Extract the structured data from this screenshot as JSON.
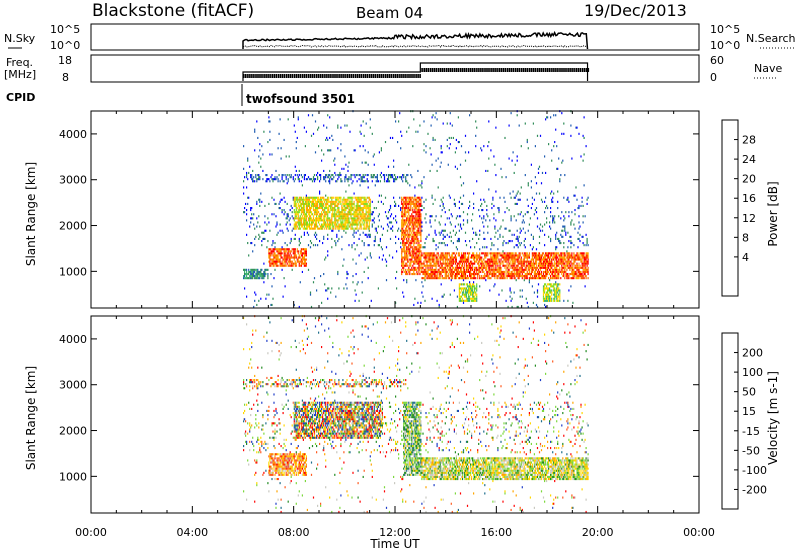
{
  "header": {
    "station": "Blackstone (fitACF)",
    "beam": "Beam 04",
    "date": "19/Dec/2013"
  },
  "noise_panel": {
    "left_label": "N.Sky",
    "right_label": "N.Search",
    "left_ticks": [
      "10^5",
      "10^0"
    ],
    "right_ticks": [
      "10^5",
      "10^0"
    ]
  },
  "freq_panel": {
    "left_label_1": "Freq.",
    "left_label_2": "[MHz]",
    "right_label": "Nave",
    "left_ticks": [
      "18",
      "8"
    ],
    "right_ticks": [
      "60",
      "0"
    ],
    "cpid_label": "CPID",
    "cpid_value": "twofsound 3501"
  },
  "colors": {
    "power_scale": [
      "#0000ff",
      "#1c5ab0",
      "#2e8b57",
      "#3cb371",
      "#7fdc1f",
      "#ffd700",
      "#ffa500",
      "#ff6600",
      "#ff0000"
    ],
    "velocity_scale": [
      "#1e3cc8",
      "#1e6e8c",
      "#228b22",
      "#7cd83c",
      "#c8c8c0",
      "#ffd700",
      "#ffa500",
      "#ff5a1e",
      "#ff0000"
    ]
  },
  "chart_data": [
    {
      "type": "heatmap",
      "title": "Power",
      "xlabel": "Time UT",
      "ylabel": "Slant Range [km]",
      "x_ticks": [
        "00:00",
        "04:00",
        "08:00",
        "12:00",
        "16:00",
        "20:00",
        "00:00"
      ],
      "x_range_hours": [
        0,
        24
      ],
      "y_ticks": [
        1000,
        2000,
        3000,
        4000
      ],
      "y_range_km": [
        200,
        4500
      ],
      "colorbar": {
        "label": "Power [dB]",
        "ticks": [
          "4",
          "8",
          "12",
          "16",
          "20",
          "24",
          "28"
        ],
        "range": [
          0,
          32
        ]
      },
      "data_window_hours": [
        6.0,
        19.6
      ],
      "echo_regions": [
        {
          "t_start": 6.0,
          "t_end": 7.0,
          "range_km": [
            800,
            1050
          ],
          "level": "low"
        },
        {
          "t_start": 7.0,
          "t_end": 8.5,
          "range_km": [
            1100,
            1500
          ],
          "level": "high"
        },
        {
          "t_start": 8.0,
          "t_end": 11.0,
          "range_km": [
            1900,
            2600
          ],
          "level": "medium-high"
        },
        {
          "t_start": 12.2,
          "t_end": 13.0,
          "range_km": [
            900,
            2600
          ],
          "level": "high"
        },
        {
          "t_start": 13.0,
          "t_end": 19.6,
          "range_km": [
            800,
            1400
          ],
          "level": "high"
        },
        {
          "t_start": 14.5,
          "t_end": 15.2,
          "range_km": [
            300,
            700
          ],
          "level": "medium"
        },
        {
          "t_start": 17.8,
          "t_end": 18.5,
          "range_km": [
            300,
            700
          ],
          "level": "medium"
        }
      ]
    },
    {
      "type": "heatmap",
      "title": "Velocity",
      "xlabel": "Time UT",
      "ylabel": "Slant Range [km]",
      "x_ticks": [
        "00:00",
        "04:00",
        "08:00",
        "12:00",
        "16:00",
        "20:00",
        "00:00"
      ],
      "x_range_hours": [
        0,
        24
      ],
      "y_ticks": [
        1000,
        2000,
        3000,
        4000
      ],
      "y_range_km": [
        200,
        4500
      ],
      "colorbar": {
        "label": "Velocity [m s-1]",
        "ticks": [
          "200",
          "100",
          "50",
          "15",
          "-15",
          "-50",
          "-100",
          "-200"
        ],
        "range": [
          -250,
          250
        ]
      },
      "data_window_hours": [
        6.0,
        19.6
      ],
      "echo_regions": [
        {
          "t_start": 7.0,
          "t_end": 8.5,
          "range_km": [
            1000,
            1500
          ],
          "level": "negative"
        },
        {
          "t_start": 8.0,
          "t_end": 11.5,
          "range_km": [
            1800,
            2600
          ],
          "level": "mixed"
        },
        {
          "t_start": 12.3,
          "t_end": 13.0,
          "range_km": [
            1000,
            2600
          ],
          "level": "positive-low"
        },
        {
          "t_start": 13.0,
          "t_end": 19.6,
          "range_km": [
            900,
            1400
          ],
          "level": "ground-scatter"
        }
      ]
    }
  ]
}
